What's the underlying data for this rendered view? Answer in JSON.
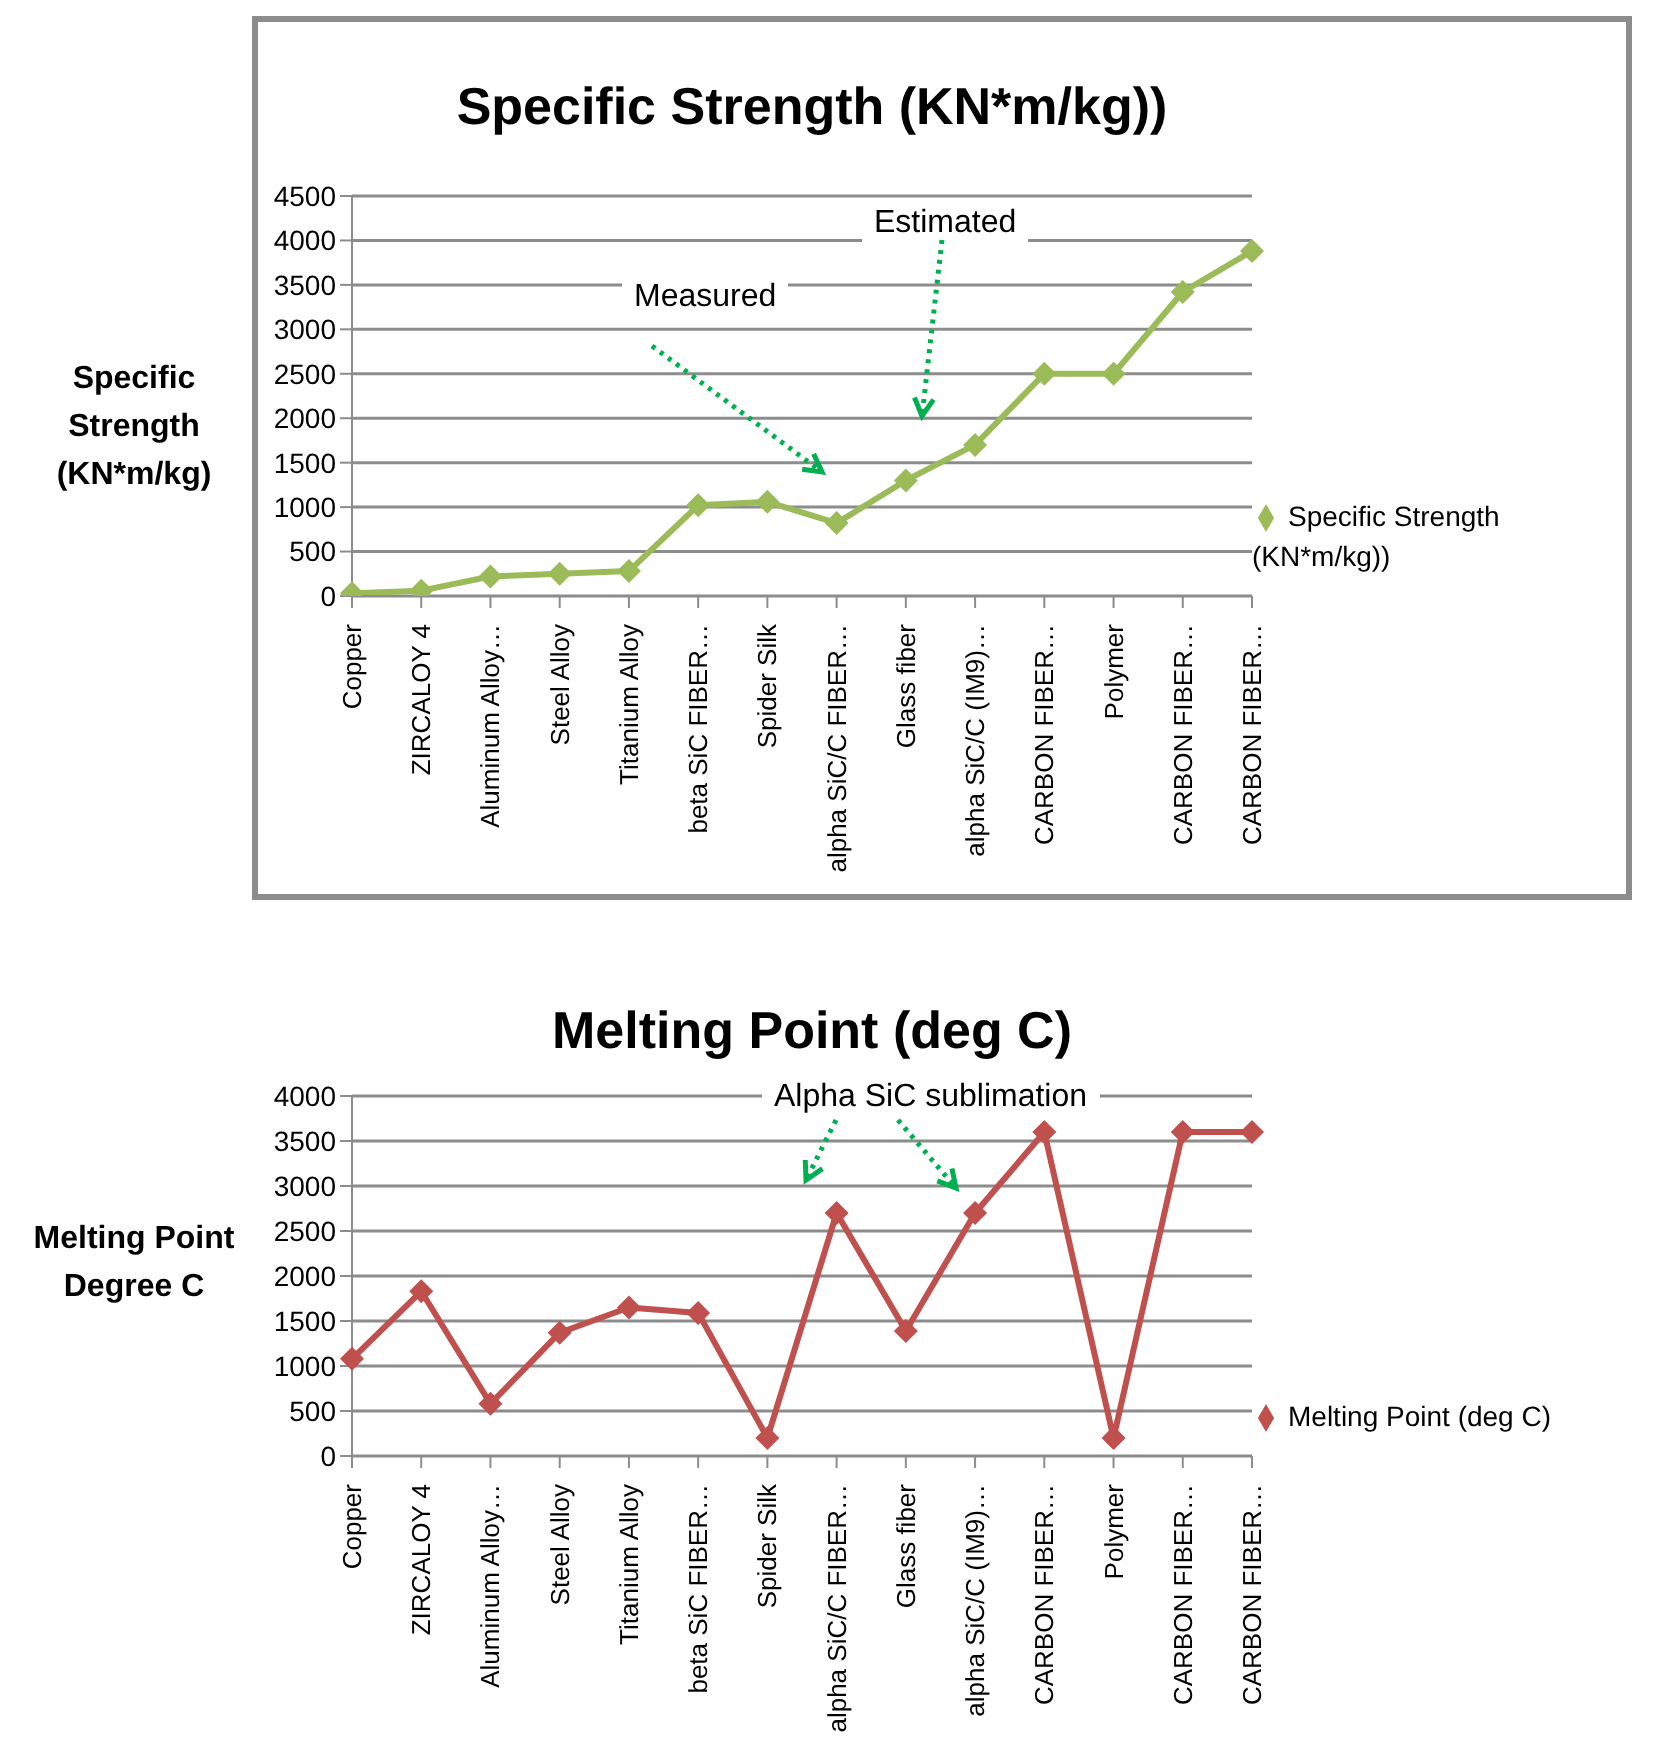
{
  "chart_data": [
    {
      "type": "line",
      "title": "Specific Strength  (KN*m/kg))",
      "ylabel": "Specific Strength (KN*m/kg)",
      "categories": [
        "Copper",
        "ZIRCALOY 4",
        "Aluminum Alloy…",
        "Steel Alloy",
        "Titanium Alloy",
        "beta SiC FIBER…",
        "Spider Silk",
        "alpha SiC/C  FIBER…",
        "Glass fiber",
        "alpha SiC/C  (IM9)…",
        "CARBON FIBER…",
        "Polymer",
        "CARBON FIBER…",
        "CARBON FIBER…"
      ],
      "series": [
        {
          "name": "Specific Strength (KN*m/kg))",
          "color": "#9bbb59",
          "values": [
            30,
            60,
            220,
            250,
            280,
            1020,
            1060,
            820,
            1300,
            1700,
            2500,
            2500,
            3420,
            3880
          ]
        }
      ],
      "ylim": [
        0,
        4500
      ],
      "yticks": [
        0,
        500,
        1000,
        1500,
        2000,
        2500,
        3000,
        3500,
        4000,
        4500
      ],
      "grid": "y",
      "legend": "right",
      "marker": "diamond",
      "annotations": [
        "Measured",
        "Estimated"
      ]
    },
    {
      "type": "line",
      "title": "Melting Point (deg C)",
      "ylabel": "Melting Point Degree C",
      "categories": [
        "Copper",
        "ZIRCALOY 4",
        "Aluminum Alloy…",
        "Steel Alloy",
        "Titanium Alloy",
        "beta SiC FIBER…",
        "Spider Silk",
        "alpha SiC/C  FIBER…",
        "Glass fiber",
        "alpha SiC/C  (IM9)…",
        "CARBON FIBER…",
        "Polymer",
        "CARBON FIBER…",
        "CARBON FIBER…"
      ],
      "series": [
        {
          "name": "Melting Point (deg C)",
          "color": "#c0504d",
          "values": [
            1080,
            1830,
            580,
            1370,
            1650,
            1590,
            200,
            2700,
            1390,
            2700,
            3600,
            200,
            3600,
            3600
          ]
        }
      ],
      "ylim": [
        0,
        4000
      ],
      "yticks": [
        0,
        500,
        1000,
        1500,
        2000,
        2500,
        3000,
        3500,
        4000
      ],
      "grid": "y",
      "legend": "right",
      "marker": "diamond",
      "annotations": [
        "Alpha SiC sublimation"
      ]
    }
  ]
}
